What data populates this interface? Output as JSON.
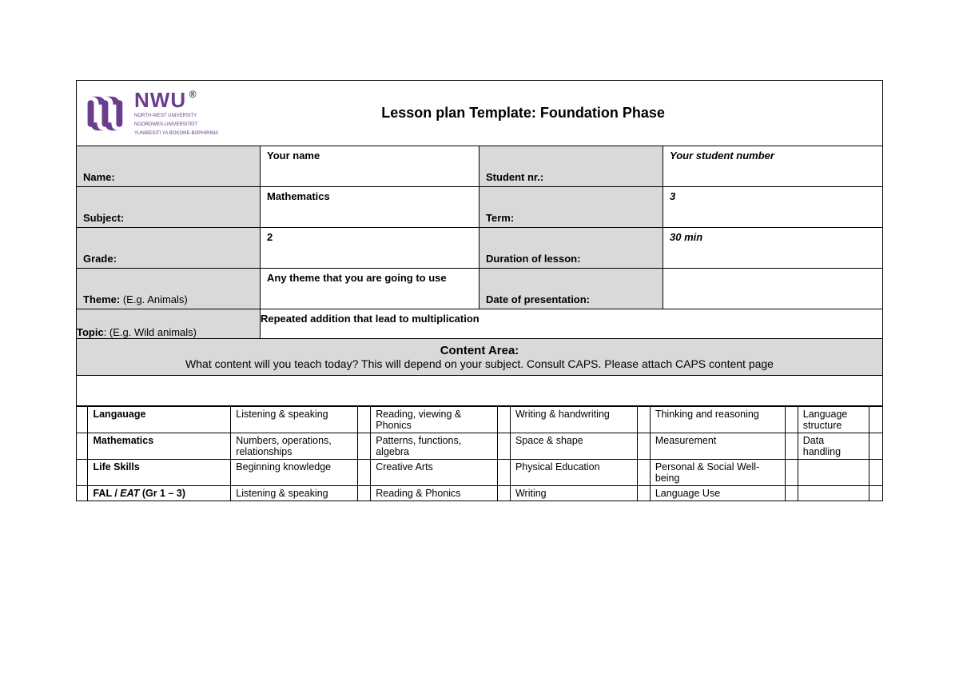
{
  "colors": {
    "brand": "#6b3d8f",
    "cell_grey": "#d9d9d9",
    "border": "#000000",
    "bg": "#ffffff"
  },
  "logo": {
    "name": "NWU",
    "reg": "®",
    "sub1": "NORTH-WEST UNIVERSITY",
    "sub2": "NOORDWES-UNIVERSITEIT",
    "sub3": "YUNIBESITI YA BOKONE-BOPHIRIMA"
  },
  "title": "Lesson plan Template: Foundation Phase",
  "rows": {
    "name": {
      "label": "Name:",
      "value": "Your name",
      "label2": "Student nr.:",
      "value2": "Your student number"
    },
    "subject": {
      "label": "Subject:",
      "value": "Mathematics",
      "label2": "Term:",
      "value2": "3"
    },
    "grade": {
      "label": "Grade:",
      "value": "2",
      "label2": "Duration of lesson:",
      "value2": "30 min"
    },
    "theme": {
      "label": "Theme: ",
      "paren": "(E.g. Animals)",
      "value": "Any theme that you are going to use",
      "label2": "Date of presentation:",
      "value2": ""
    },
    "topic": {
      "label": "Topic",
      "paren": ": (E.g. Wild animals)",
      "value": "Repeated addition that lead to multiplication"
    }
  },
  "content_area": {
    "heading": "Content Area:",
    "sub": "What content will you teach today? This will depend on your subject. Consult CAPS. Please attach CAPS content page"
  },
  "content_table": [
    {
      "label": "Langauage",
      "c1": "Listening & speaking",
      "c2": "Reading, viewing & Phonics",
      "c3": "Writing & handwriting",
      "c4": "Thinking and reasoning",
      "c5": "Language structure"
    },
    {
      "label": "Mathematics",
      "c1": "Numbers, operations, relationships",
      "c2": "Patterns, functions, algebra",
      "c3": "Space & shape",
      "c4": "Measurement",
      "c5": "Data handling"
    },
    {
      "label": "Life Skills",
      "c1": "Beginning knowledge",
      "c2": "Creative Arts",
      "c3": "Physical Education",
      "c4": "Personal & Social Well-being",
      "c5": ""
    },
    {
      "label_html": "FAL / <span class=\"it\">EAT</span> (Gr 1 – 3)",
      "c1": "Listening & speaking",
      "c2": "Reading & Phonics",
      "c3": "Writing",
      "c4": "Language Use",
      "c5": ""
    }
  ]
}
